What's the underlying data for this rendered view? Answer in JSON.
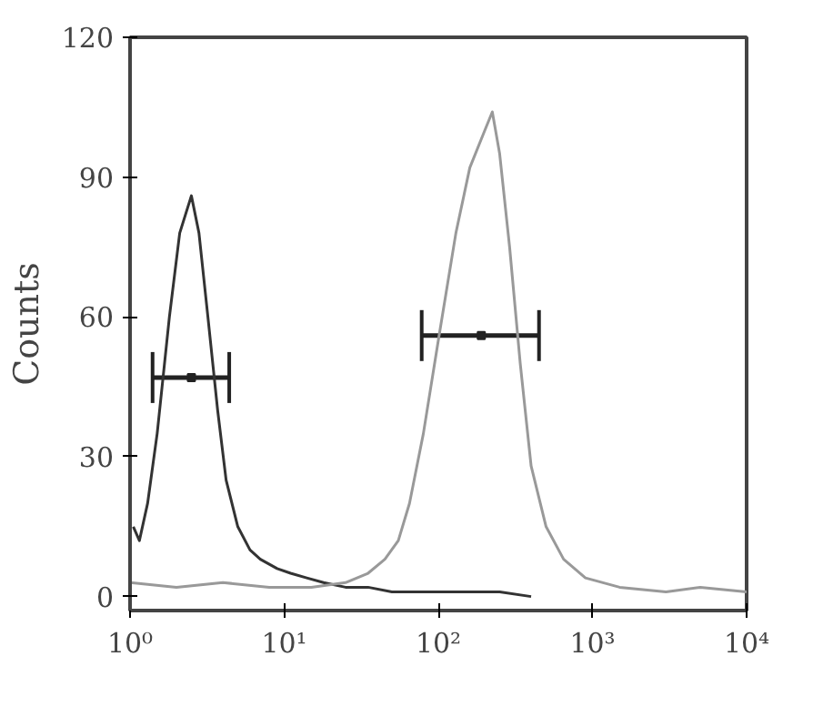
{
  "chart_data": {
    "type": "line",
    "ylabel": "Counts",
    "log": "x",
    "xlim": [
      1,
      10000
    ],
    "ylim": [
      -3,
      120
    ],
    "xticks": [
      {
        "value": 1,
        "label": "10⁰"
      },
      {
        "value": 10,
        "label": "10¹"
      },
      {
        "value": 100,
        "label": "10²"
      },
      {
        "value": 1000,
        "label": "10³"
      },
      {
        "value": 10000,
        "label": "10⁴"
      }
    ],
    "yticks": [
      0,
      30,
      60,
      90,
      120
    ],
    "grid": false,
    "marker": "none",
    "line_style": "solid",
    "series": [
      {
        "color": "#333333",
        "x": [
          1.05,
          1.15,
          1.3,
          1.5,
          1.8,
          2.1,
          2.5,
          2.8,
          3.2,
          3.7,
          4.2,
          5,
          6,
          7,
          9,
          11,
          14,
          18,
          25,
          35,
          50,
          70,
          100,
          150,
          250,
          400
        ],
        "values": [
          15,
          12,
          20,
          35,
          60,
          78,
          86,
          78,
          60,
          40,
          25,
          15,
          10,
          8,
          6,
          5,
          4,
          3,
          2,
          2,
          1,
          1,
          1,
          1,
          1,
          0
        ]
      },
      {
        "color": "#999999",
        "x": [
          1,
          2,
          4,
          8,
          15,
          25,
          35,
          45,
          55,
          65,
          80,
          100,
          130,
          160,
          200,
          224,
          250,
          290,
          340,
          400,
          500,
          650,
          900,
          1500,
          3000,
          5000,
          10000
        ],
        "values": [
          3,
          2,
          3,
          2,
          2,
          3,
          5,
          8,
          12,
          20,
          35,
          55,
          78,
          92,
          100,
          104,
          95,
          75,
          50,
          28,
          15,
          8,
          4,
          2,
          1,
          2,
          1
        ]
      },
      {
        "type": "scatter",
        "color": "#222222",
        "marker": "square",
        "x": [
          2.5,
          190
        ],
        "values": [
          47,
          56
        ],
        "xerrors": [
          [
            1.4,
            4.4
          ],
          [
            78,
            450
          ]
        ]
      }
    ]
  }
}
